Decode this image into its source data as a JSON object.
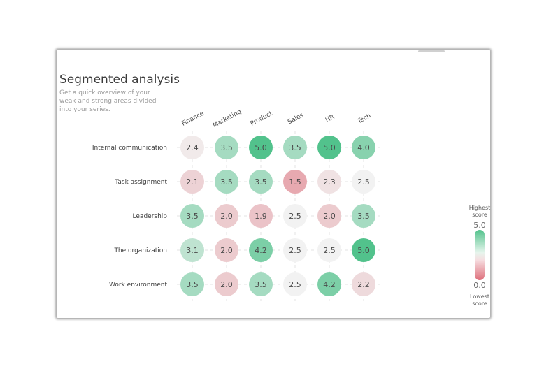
{
  "header": {
    "title": "Segmented analysis",
    "subtitle": "Get a quick overview of your weak and strong areas divided into your series."
  },
  "legend": {
    "top_label": "Highest score",
    "bottom_label": "Lowest score",
    "max": "5.0",
    "min": "0.0",
    "colors": {
      "low": "#de6f7b",
      "mid": "#f2f2f2",
      "high": "#52c28c"
    }
  },
  "chart_data": {
    "type": "heatmap",
    "title": "Segmented analysis",
    "columns": [
      "Finance",
      "Marketing",
      "Product",
      "Sales",
      "HR",
      "Tech"
    ],
    "rows": [
      "Internal communication",
      "Task assignment",
      "Leadership",
      "The organization",
      "Work environment"
    ],
    "values": [
      [
        2.4,
        3.5,
        5.0,
        3.5,
        5.0,
        4.0
      ],
      [
        2.1,
        3.5,
        3.5,
        1.5,
        2.3,
        2.5
      ],
      [
        3.5,
        2.0,
        1.9,
        2.5,
        2.0,
        3.5
      ],
      [
        3.1,
        2.0,
        4.2,
        2.5,
        2.5,
        5.0
      ],
      [
        3.5,
        2.0,
        3.5,
        2.5,
        4.2,
        2.2
      ]
    ],
    "value_range": [
      0,
      5
    ],
    "grid": true
  }
}
